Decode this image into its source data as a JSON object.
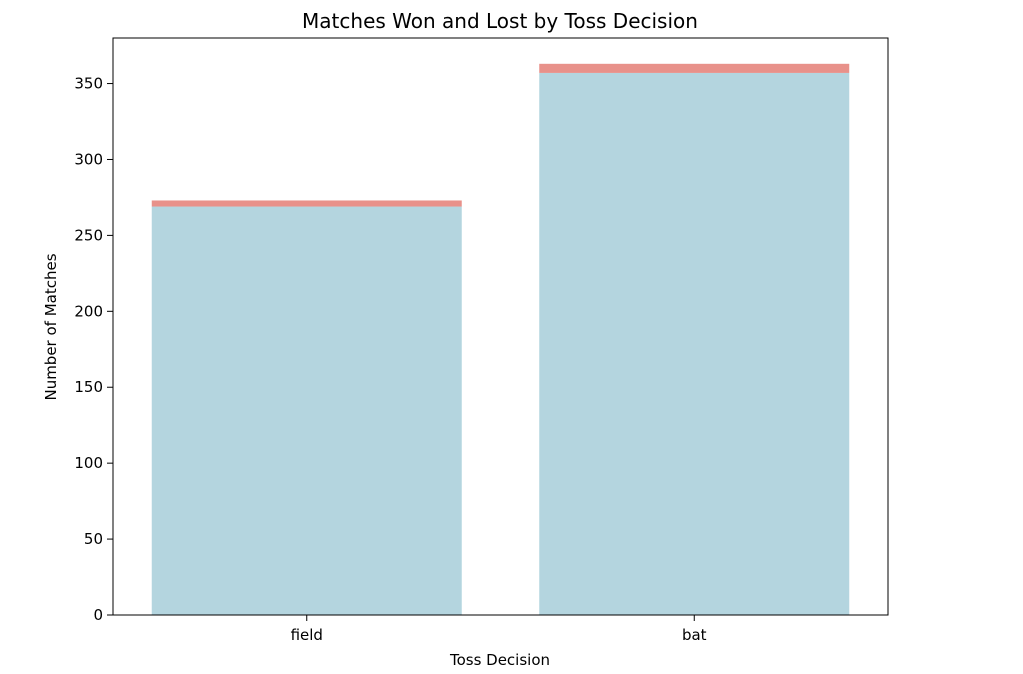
{
  "chart_data": {
    "type": "bar",
    "stacked": true,
    "title": "Matches Won and Lost by Toss Decision",
    "xlabel": "Toss Decision",
    "ylabel": "Number of Matches",
    "categories": [
      "field",
      "bat"
    ],
    "series": [
      {
        "values": [
          269,
          357
        ],
        "color": "#b4d5df"
      },
      {
        "values": [
          4,
          6
        ],
        "color": "#e8918a"
      }
    ],
    "ylim": [
      0,
      380
    ],
    "yticks": [
      0,
      50,
      100,
      150,
      200,
      250,
      300,
      350
    ],
    "grid": false
  }
}
